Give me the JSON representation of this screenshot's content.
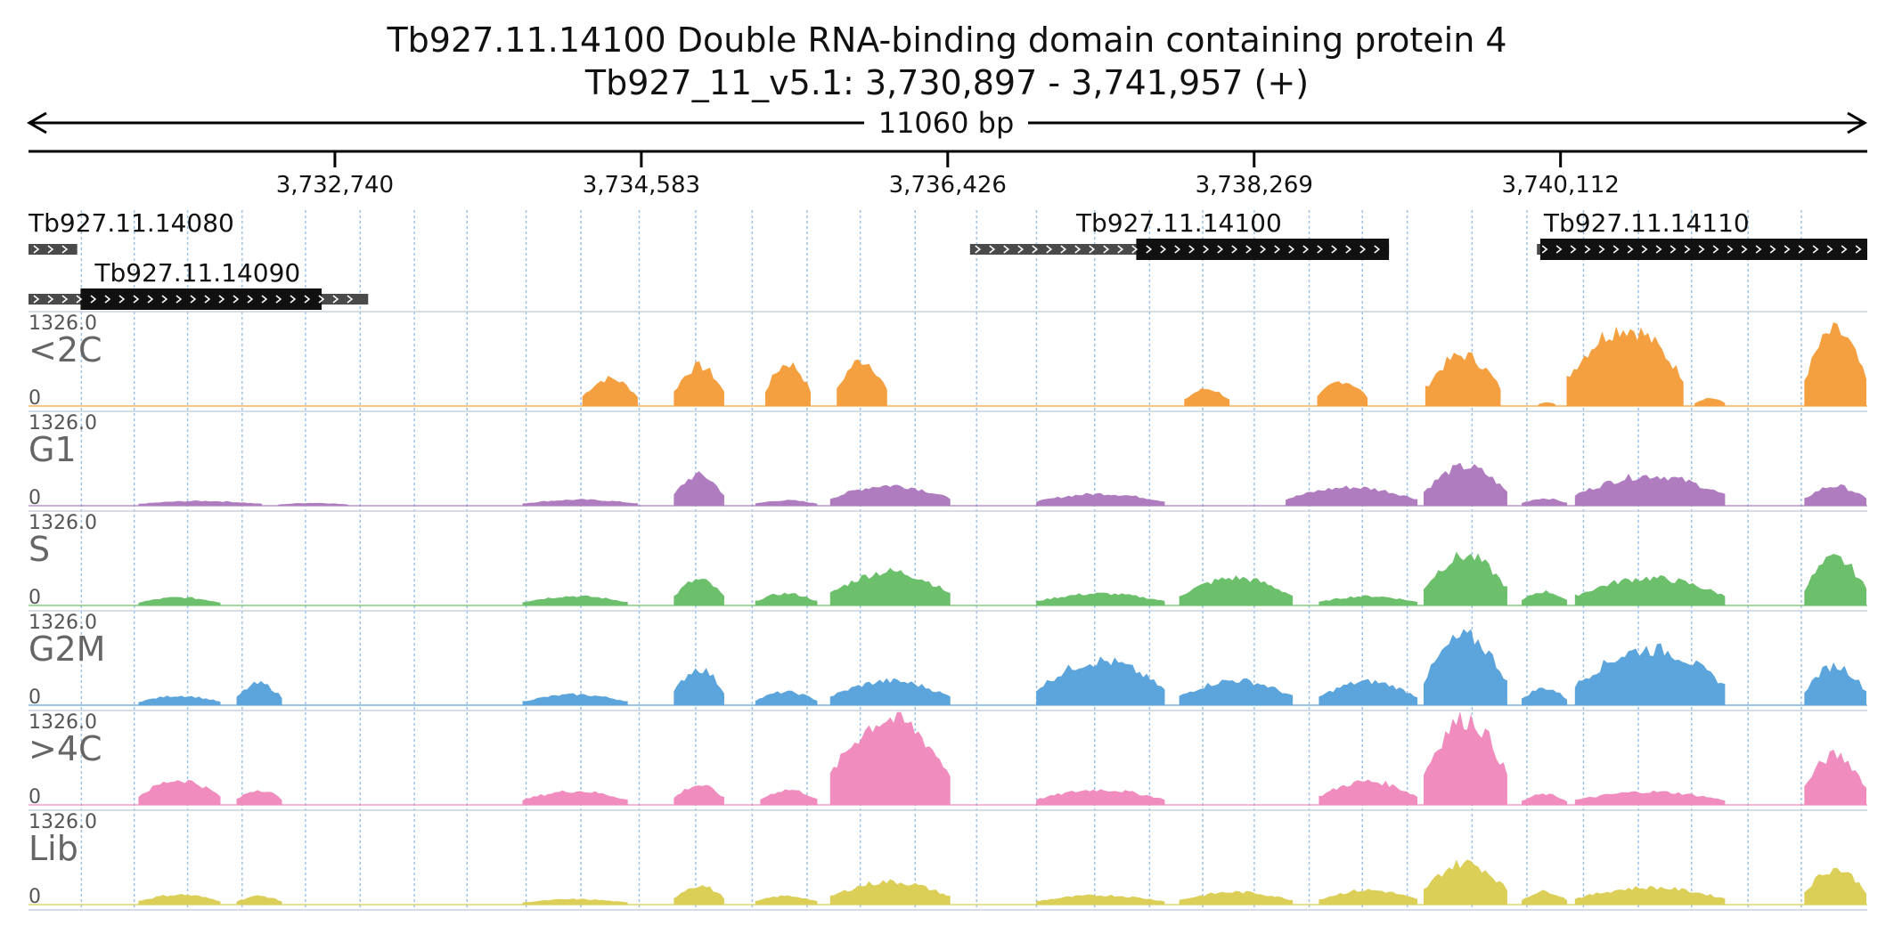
{
  "header": {
    "title_line1": "Tb927.11.14100  Double RNA-binding domain containing protein 4",
    "title_line2": "Tb927_11_v5.1: 3,730,897 - 3,741,957 (+)",
    "span_label": "11060 bp"
  },
  "chart_data": {
    "type": "area",
    "region": {
      "chrom": "Tb927_11_v5.1",
      "start": 3730897,
      "end": 3741957,
      "strand": "+"
    },
    "ticks": [
      {
        "pos": 3732740,
        "label": "3,732,740"
      },
      {
        "pos": 3734583,
        "label": "3,734,583"
      },
      {
        "pos": 3736426,
        "label": "3,736,426"
      },
      {
        "pos": 3738269,
        "label": "3,738,269"
      },
      {
        "pos": 3740112,
        "label": "3,740,112"
      }
    ],
    "gridlines": [
      3731215,
      3731533,
      3731854,
      3732182,
      3732563,
      3732892,
      3733218,
      3733535,
      3733890,
      3734220,
      3734570,
      3734910,
      3735250,
      3735580,
      3735900,
      3736230,
      3736600,
      3736960,
      3737310,
      3737640,
      3737960,
      3738270,
      3738600,
      3738920,
      3739190,
      3739580,
      3739910,
      3740250,
      3740580,
      3740900,
      3741240,
      3741560
    ],
    "genes": [
      {
        "name": "Tb927.11.14080",
        "row": 0,
        "start": 3730897,
        "end": 3731190,
        "cds_start": null,
        "cds_end": null
      },
      {
        "name": "Tb927.11.14090",
        "row": 1,
        "start": 3730897,
        "end": 3732940,
        "cds_start": 3731210,
        "cds_end": 3732660
      },
      {
        "name": "Tb927.11.14100",
        "row": 0,
        "start": 3736560,
        "end": 3739080,
        "cds_start": 3737560,
        "cds_end": 3739080
      },
      {
        "name": "Tb927.11.14110",
        "row": 0,
        "start": 3739970,
        "end": 3741957,
        "cds_start": 3739990,
        "cds_end": 3741957
      }
    ],
    "tracks": [
      {
        "name": "<2C",
        "color": "#f5a040",
        "scale_max": "1326.0",
        "scale_min": "0",
        "segments": [
          {
            "start": 3734230,
            "end": 3734560,
            "peak": 420
          },
          {
            "start": 3734780,
            "end": 3735080,
            "peak": 610
          },
          {
            "start": 3735330,
            "end": 3735600,
            "peak": 650
          },
          {
            "start": 3735760,
            "end": 3736060,
            "peak": 700
          },
          {
            "start": 3737850,
            "end": 3738120,
            "peak": 260
          },
          {
            "start": 3738650,
            "end": 3738950,
            "peak": 380
          },
          {
            "start": 3739300,
            "end": 3739750,
            "peak": 780
          },
          {
            "start": 3739980,
            "end": 3740080,
            "peak": 60
          },
          {
            "start": 3740150,
            "end": 3740850,
            "peak": 1200
          },
          {
            "start": 3740920,
            "end": 3741100,
            "peak": 120
          },
          {
            "start": 3741580,
            "end": 3741950,
            "peak": 1150
          }
        ]
      },
      {
        "name": "G1",
        "color": "#b07cc0",
        "scale_max": "1326.0",
        "scale_min": "0",
        "segments": [
          {
            "start": 3731560,
            "end": 3732300,
            "peak": 70
          },
          {
            "start": 3732400,
            "end": 3732820,
            "peak": 40
          },
          {
            "start": 3733870,
            "end": 3734560,
            "peak": 90
          },
          {
            "start": 3734780,
            "end": 3735080,
            "peak": 470
          },
          {
            "start": 3735270,
            "end": 3735640,
            "peak": 80
          },
          {
            "start": 3735720,
            "end": 3736440,
            "peak": 310
          },
          {
            "start": 3736960,
            "end": 3737730,
            "peak": 180
          },
          {
            "start": 3738460,
            "end": 3739250,
            "peak": 280
          },
          {
            "start": 3739290,
            "end": 3739790,
            "peak": 600
          },
          {
            "start": 3739880,
            "end": 3740150,
            "peak": 110
          },
          {
            "start": 3740200,
            "end": 3741100,
            "peak": 460
          },
          {
            "start": 3741580,
            "end": 3741950,
            "peak": 300
          }
        ]
      },
      {
        "name": "S",
        "color": "#6cc06c",
        "scale_max": "1326.0",
        "scale_min": "0",
        "segments": [
          {
            "start": 3731560,
            "end": 3732050,
            "peak": 120
          },
          {
            "start": 3733870,
            "end": 3734500,
            "peak": 140
          },
          {
            "start": 3734780,
            "end": 3735080,
            "peak": 390
          },
          {
            "start": 3735270,
            "end": 3735640,
            "peak": 180
          },
          {
            "start": 3735720,
            "end": 3736440,
            "peak": 520
          },
          {
            "start": 3736960,
            "end": 3737730,
            "peak": 180
          },
          {
            "start": 3737820,
            "end": 3738500,
            "peak": 420
          },
          {
            "start": 3738660,
            "end": 3739250,
            "peak": 140
          },
          {
            "start": 3739290,
            "end": 3739790,
            "peak": 760
          },
          {
            "start": 3739880,
            "end": 3740150,
            "peak": 210
          },
          {
            "start": 3740200,
            "end": 3741100,
            "peak": 420
          },
          {
            "start": 3741580,
            "end": 3741950,
            "peak": 720
          }
        ]
      },
      {
        "name": "G2M",
        "color": "#5ca5dc",
        "scale_max": "1326.0",
        "scale_min": "0",
        "segments": [
          {
            "start": 3731560,
            "end": 3732050,
            "peak": 140
          },
          {
            "start": 3732150,
            "end": 3732420,
            "peak": 330
          },
          {
            "start": 3733870,
            "end": 3734500,
            "peak": 160
          },
          {
            "start": 3734780,
            "end": 3735080,
            "peak": 560
          },
          {
            "start": 3735270,
            "end": 3735640,
            "peak": 200
          },
          {
            "start": 3735720,
            "end": 3736440,
            "peak": 370
          },
          {
            "start": 3736960,
            "end": 3737730,
            "peak": 680
          },
          {
            "start": 3737820,
            "end": 3738500,
            "peak": 380
          },
          {
            "start": 3738660,
            "end": 3739250,
            "peak": 360
          },
          {
            "start": 3739290,
            "end": 3739790,
            "peak": 1050
          },
          {
            "start": 3739880,
            "end": 3740150,
            "peak": 260
          },
          {
            "start": 3740200,
            "end": 3741100,
            "peak": 860
          },
          {
            "start": 3741580,
            "end": 3741950,
            "peak": 600
          }
        ]
      },
      {
        "name": ">4C",
        "color": "#f08cbe",
        "scale_max": "1326.0",
        "scale_min": "0",
        "segments": [
          {
            "start": 3731560,
            "end": 3732050,
            "peak": 380
          },
          {
            "start": 3732150,
            "end": 3732420,
            "peak": 230
          },
          {
            "start": 3733870,
            "end": 3734500,
            "peak": 210
          },
          {
            "start": 3734780,
            "end": 3735080,
            "peak": 300
          },
          {
            "start": 3735300,
            "end": 3735640,
            "peak": 230
          },
          {
            "start": 3735720,
            "end": 3736440,
            "peak": 1326
          },
          {
            "start": 3736960,
            "end": 3737730,
            "peak": 230
          },
          {
            "start": 3738660,
            "end": 3739250,
            "peak": 360
          },
          {
            "start": 3739290,
            "end": 3739790,
            "peak": 1326
          },
          {
            "start": 3739880,
            "end": 3740150,
            "peak": 160
          },
          {
            "start": 3740200,
            "end": 3741100,
            "peak": 200
          },
          {
            "start": 3741580,
            "end": 3741950,
            "peak": 760
          }
        ]
      },
      {
        "name": "Lib",
        "color": "#dccf58",
        "scale_max": "1326.0",
        "scale_min": "0",
        "segments": [
          {
            "start": 3731560,
            "end": 3732050,
            "peak": 150
          },
          {
            "start": 3732150,
            "end": 3732420,
            "peak": 130
          },
          {
            "start": 3733870,
            "end": 3734500,
            "peak": 80
          },
          {
            "start": 3734780,
            "end": 3735080,
            "peak": 290
          },
          {
            "start": 3735270,
            "end": 3735640,
            "peak": 130
          },
          {
            "start": 3735720,
            "end": 3736440,
            "peak": 350
          },
          {
            "start": 3736960,
            "end": 3737730,
            "peak": 140
          },
          {
            "start": 3737820,
            "end": 3738500,
            "peak": 190
          },
          {
            "start": 3738660,
            "end": 3739250,
            "peak": 220
          },
          {
            "start": 3739290,
            "end": 3739790,
            "peak": 640
          },
          {
            "start": 3739880,
            "end": 3740150,
            "peak": 200
          },
          {
            "start": 3740200,
            "end": 3741100,
            "peak": 260
          },
          {
            "start": 3741580,
            "end": 3741950,
            "peak": 550
          }
        ]
      }
    ]
  }
}
